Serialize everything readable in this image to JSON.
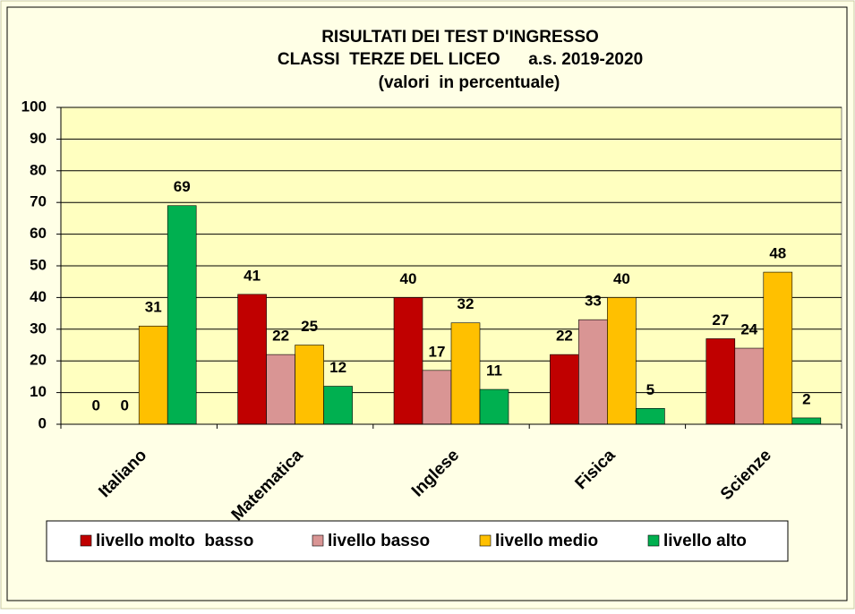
{
  "chart_data": {
    "type": "bar",
    "title_lines": [
      "RISULTATI DEI TEST D'INGRESSO",
      "CLASSI  TERZE DEL LICEO      a.s. 2019-2020",
      "(valori  in percentuale)"
    ],
    "categories": [
      "Italiano",
      "Matematica",
      "Inglese",
      "Fisica",
      "Scienze"
    ],
    "series": [
      {
        "name": "livello molto  basso",
        "color": "#c00000",
        "values": [
          0,
          41,
          40,
          22,
          27
        ]
      },
      {
        "name": "livello basso",
        "color": "#d99594",
        "values": [
          0,
          22,
          17,
          33,
          24
        ]
      },
      {
        "name": "livello medio",
        "color": "#ffc000",
        "values": [
          31,
          25,
          32,
          40,
          48
        ]
      },
      {
        "name": "livello alto",
        "color": "#00b050",
        "values": [
          69,
          12,
          11,
          5,
          2
        ]
      }
    ],
    "ylim": [
      0,
      100
    ],
    "yticks": [
      0,
      10,
      20,
      30,
      40,
      50,
      60,
      70,
      80,
      90,
      100
    ],
    "grid": true,
    "legend": "bottom"
  }
}
